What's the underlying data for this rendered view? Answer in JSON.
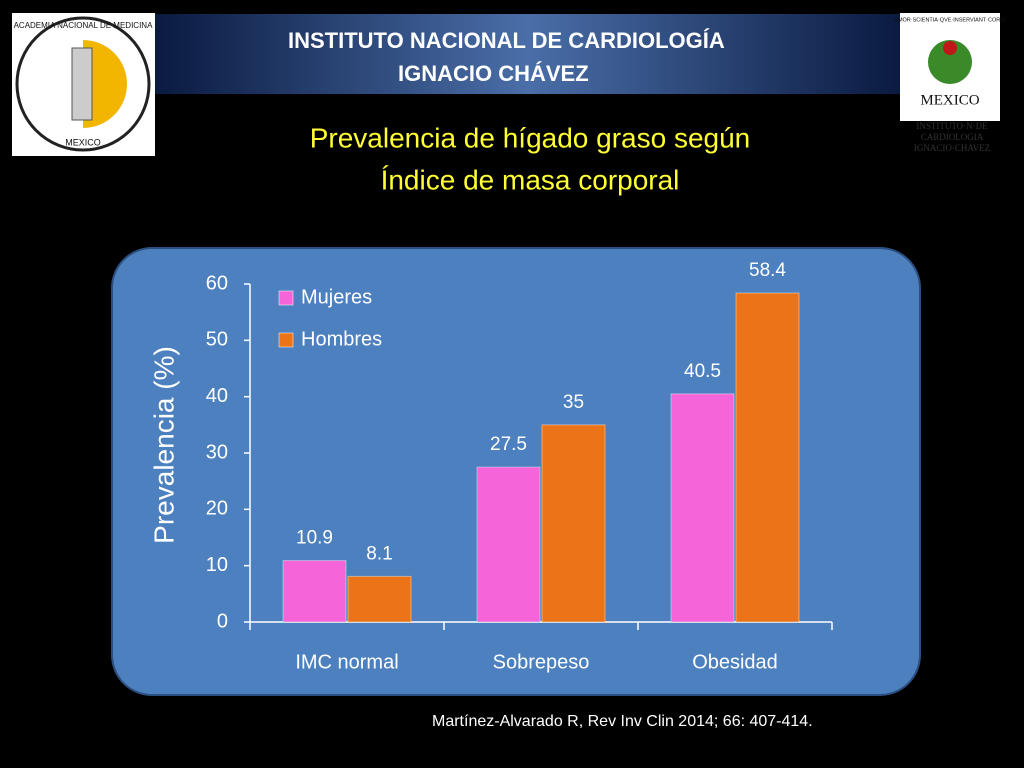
{
  "header": {
    "lines": [
      "INSTITUTO NACIONAL DE CARDIOLOGÍA",
      "IGNACIO CHÁVEZ"
    ],
    "left_logo": [
      "ACADEMIA NACIONAL DE MEDICINA",
      "MEXICO"
    ],
    "right_logo": [
      "AMOR·SCIENTIA·QVE·INSERVIANT·CORDI",
      "MEXICO",
      "INSTITUTO·N·DE",
      "CARDIOLOGIA",
      "IGNACIO·CHAVEZ"
    ]
  },
  "chart_data": {
    "type": "bar",
    "title": [
      "Prevalencia de hígado graso según",
      "Índice de masa corporal"
    ],
    "y_label": "Prevalencia (%)",
    "categories": [
      "IMC normal",
      "Sobrepeso",
      "Obesidad"
    ],
    "series": [
      {
        "name": "Mujeres",
        "color": "#f564d8",
        "values": [
          10.9,
          27.5,
          40.5
        ]
      },
      {
        "name": "Hombres",
        "color": "#ea7417",
        "values": [
          8.1,
          35,
          58.4
        ]
      }
    ],
    "ylim": [
      0,
      60
    ],
    "yticks": [
      0,
      10,
      20,
      30,
      40,
      50,
      60
    ],
    "legend": "upper left"
  },
  "citation": "Martínez-Alvarado R, Rev Inv Clin 2014; 66: 407-414."
}
